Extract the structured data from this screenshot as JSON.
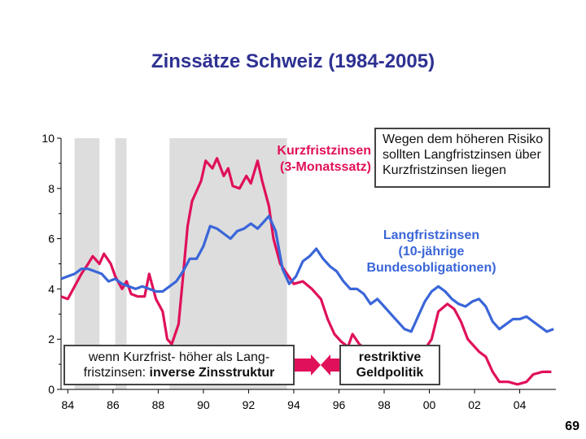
{
  "colors": {
    "short": "#E0105A",
    "long": "#3A66D8",
    "shade": "#DDDDDD",
    "title": "#2E3192"
  },
  "notes": {
    "risk": [
      "Wegen dem höheren Risiko",
      "sollten Langfristzinsen über",
      "Kurzfristzinsen liegen"
    ],
    "inverse": {
      "line1": "wenn Kurzfrist- höher als Lang-",
      "line2_plain": "fristzinsen: ",
      "line2_bold": "inverse Zinsstruktur"
    },
    "restrictive": [
      "restriktive",
      "Geldpolitik"
    ]
  },
  "page_number": "69",
  "chart_data": {
    "type": "line",
    "title": "Zinssätze Schweiz (1984-2005)",
    "xlabel": "",
    "ylabel": "",
    "xlim": [
      1983.7,
      2005.6
    ],
    "ylim": [
      0,
      10
    ],
    "xticks": [
      {
        "value": 1984,
        "label": "84"
      },
      {
        "value": 1986,
        "label": "86"
      },
      {
        "value": 1988,
        "label": "88"
      },
      {
        "value": 1990,
        "label": "90"
      },
      {
        "value": 1992,
        "label": "92"
      },
      {
        "value": 1994,
        "label": "94"
      },
      {
        "value": 1996,
        "label": "96"
      },
      {
        "value": 1998,
        "label": "98"
      },
      {
        "value": 2000,
        "label": "00"
      },
      {
        "value": 2002,
        "label": "02"
      },
      {
        "value": 2004,
        "label": "04"
      }
    ],
    "yticks": [
      0,
      2,
      4,
      6,
      8,
      10
    ],
    "shaded_periods": [
      [
        1984.3,
        1985.4
      ],
      [
        1986.1,
        1986.6
      ],
      [
        1988.5,
        1993.7
      ]
    ],
    "series": [
      {
        "name": "Kurzfristzinsen (3-Monatssatz)",
        "label_lines": [
          "Kurzfristzinsen",
          "(3-Monatssatz)"
        ],
        "color": "#E0105A",
        "points": [
          [
            1983.7,
            3.7
          ],
          [
            1984.0,
            3.6
          ],
          [
            1984.3,
            4.1
          ],
          [
            1984.6,
            4.6
          ],
          [
            1984.9,
            5.0
          ],
          [
            1985.1,
            5.3
          ],
          [
            1985.4,
            5.0
          ],
          [
            1985.6,
            5.4
          ],
          [
            1985.9,
            5.0
          ],
          [
            1986.1,
            4.5
          ],
          [
            1986.4,
            4.0
          ],
          [
            1986.6,
            4.3
          ],
          [
            1986.8,
            3.8
          ],
          [
            1987.1,
            3.7
          ],
          [
            1987.4,
            3.7
          ],
          [
            1987.6,
            4.6
          ],
          [
            1987.9,
            3.6
          ],
          [
            1988.2,
            3.1
          ],
          [
            1988.4,
            2.0
          ],
          [
            1988.6,
            1.8
          ],
          [
            1988.9,
            2.6
          ],
          [
            1989.1,
            4.5
          ],
          [
            1989.3,
            6.5
          ],
          [
            1989.5,
            7.5
          ],
          [
            1989.7,
            7.9
          ],
          [
            1989.9,
            8.3
          ],
          [
            1990.1,
            9.1
          ],
          [
            1990.4,
            8.8
          ],
          [
            1990.6,
            9.2
          ],
          [
            1990.9,
            8.5
          ],
          [
            1991.1,
            8.8
          ],
          [
            1991.3,
            8.1
          ],
          [
            1991.6,
            8.0
          ],
          [
            1991.9,
            8.5
          ],
          [
            1992.1,
            8.2
          ],
          [
            1992.4,
            9.1
          ],
          [
            1992.6,
            8.3
          ],
          [
            1992.9,
            7.3
          ],
          [
            1993.1,
            6.0
          ],
          [
            1993.4,
            5.0
          ],
          [
            1993.7,
            4.6
          ],
          [
            1994.0,
            4.2
          ],
          [
            1994.4,
            4.3
          ],
          [
            1994.8,
            4.0
          ],
          [
            1995.2,
            3.6
          ],
          [
            1995.5,
            2.8
          ],
          [
            1995.8,
            2.2
          ],
          [
            1996.1,
            1.9
          ],
          [
            1996.4,
            1.7
          ],
          [
            1996.6,
            2.2
          ],
          [
            1996.9,
            1.8
          ],
          [
            1997.2,
            1.6
          ],
          [
            1997.5,
            1.6
          ],
          [
            1997.8,
            1.2
          ],
          [
            1998.1,
            1.4
          ],
          [
            1998.4,
            1.6
          ],
          [
            1998.7,
            1.1
          ],
          [
            1999.0,
            1.2
          ],
          [
            1999.4,
            1.4
          ],
          [
            1999.8,
            1.6
          ],
          [
            2000.1,
            2.0
          ],
          [
            2000.4,
            3.1
          ],
          [
            2000.8,
            3.4
          ],
          [
            2001.1,
            3.2
          ],
          [
            2001.4,
            2.7
          ],
          [
            2001.7,
            2.0
          ],
          [
            2001.9,
            1.8
          ],
          [
            2002.2,
            1.5
          ],
          [
            2002.5,
            1.3
          ],
          [
            2002.8,
            0.7
          ],
          [
            2003.1,
            0.3
          ],
          [
            2003.5,
            0.3
          ],
          [
            2003.9,
            0.2
          ],
          [
            2004.3,
            0.3
          ],
          [
            2004.6,
            0.6
          ],
          [
            2005.0,
            0.7
          ],
          [
            2005.4,
            0.7
          ]
        ]
      },
      {
        "name": "Langfristzinsen (10-jährige Bundesobligationen)",
        "label_lines": [
          "Langfristzinsen",
          "(10-jährige",
          "Bundesobligationen)"
        ],
        "color": "#3A66D8",
        "points": [
          [
            1983.7,
            4.4
          ],
          [
            1984.0,
            4.5
          ],
          [
            1984.3,
            4.6
          ],
          [
            1984.6,
            4.8
          ],
          [
            1984.9,
            4.8
          ],
          [
            1985.2,
            4.7
          ],
          [
            1985.5,
            4.6
          ],
          [
            1985.8,
            4.3
          ],
          [
            1986.1,
            4.4
          ],
          [
            1986.4,
            4.2
          ],
          [
            1986.7,
            4.1
          ],
          [
            1987.0,
            4.0
          ],
          [
            1987.3,
            4.1
          ],
          [
            1987.6,
            4.0
          ],
          [
            1987.9,
            3.9
          ],
          [
            1988.2,
            3.9
          ],
          [
            1988.5,
            4.1
          ],
          [
            1988.8,
            4.3
          ],
          [
            1989.1,
            4.7
          ],
          [
            1989.4,
            5.2
          ],
          [
            1989.7,
            5.2
          ],
          [
            1990.0,
            5.7
          ],
          [
            1990.3,
            6.5
          ],
          [
            1990.6,
            6.4
          ],
          [
            1990.9,
            6.2
          ],
          [
            1991.2,
            6.0
          ],
          [
            1991.5,
            6.3
          ],
          [
            1991.8,
            6.4
          ],
          [
            1992.1,
            6.6
          ],
          [
            1992.4,
            6.4
          ],
          [
            1992.7,
            6.7
          ],
          [
            1992.9,
            6.9
          ],
          [
            1993.2,
            6.3
          ],
          [
            1993.5,
            4.8
          ],
          [
            1993.8,
            4.2
          ],
          [
            1994.1,
            4.5
          ],
          [
            1994.4,
            5.1
          ],
          [
            1994.7,
            5.3
          ],
          [
            1995.0,
            5.6
          ],
          [
            1995.3,
            5.2
          ],
          [
            1995.6,
            4.9
          ],
          [
            1995.9,
            4.7
          ],
          [
            1996.2,
            4.3
          ],
          [
            1996.5,
            4.0
          ],
          [
            1996.8,
            4.0
          ],
          [
            1997.1,
            3.8
          ],
          [
            1997.4,
            3.4
          ],
          [
            1997.7,
            3.6
          ],
          [
            1998.0,
            3.3
          ],
          [
            1998.3,
            3.0
          ],
          [
            1998.6,
            2.7
          ],
          [
            1998.9,
            2.4
          ],
          [
            1999.2,
            2.3
          ],
          [
            1999.5,
            2.9
          ],
          [
            1999.8,
            3.5
          ],
          [
            2000.1,
            3.9
          ],
          [
            2000.4,
            4.1
          ],
          [
            2000.7,
            3.9
          ],
          [
            2001.0,
            3.6
          ],
          [
            2001.3,
            3.4
          ],
          [
            2001.6,
            3.3
          ],
          [
            2001.9,
            3.5
          ],
          [
            2002.2,
            3.6
          ],
          [
            2002.5,
            3.3
          ],
          [
            2002.8,
            2.7
          ],
          [
            2003.1,
            2.4
          ],
          [
            2003.4,
            2.6
          ],
          [
            2003.7,
            2.8
          ],
          [
            2004.0,
            2.8
          ],
          [
            2004.3,
            2.9
          ],
          [
            2004.6,
            2.7
          ],
          [
            2004.9,
            2.5
          ],
          [
            2005.2,
            2.3
          ],
          [
            2005.5,
            2.4
          ]
        ]
      }
    ]
  }
}
